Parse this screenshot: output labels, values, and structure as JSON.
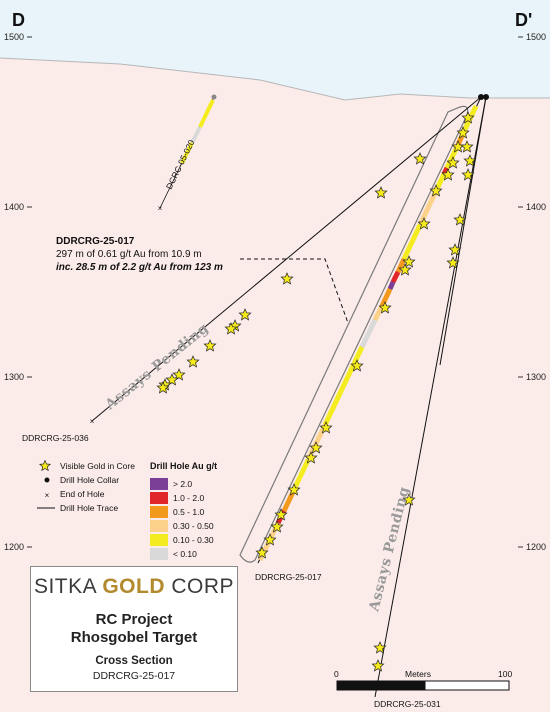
{
  "corners": {
    "left": "D",
    "right": "D'"
  },
  "elevations": [
    "1500",
    "1400",
    "1300",
    "1200"
  ],
  "holes": {
    "main": "DDRCRG-25-017",
    "main_bottom": "DDRCRG-25-017",
    "left_hole": "DDRCRG-25-036",
    "short_hole": "DCRC-05-020",
    "steep_hole": "DDRCRG-25-031"
  },
  "annotation": {
    "title": "DDRCRG-25-017",
    "line1": "297 m of 0.61 g/t Au from 10.9 m",
    "line2": "inc. 28.5 m of 2.2 g/t Au from 123 m"
  },
  "pending": [
    "Assays Pending",
    "Assays Pending"
  ],
  "legend": {
    "symbols": [
      {
        "label": "Visible Gold in Core",
        "icon": "star-icon"
      },
      {
        "label": "Drill Hole Collar",
        "icon": "collar-dot-icon"
      },
      {
        "label": "End of Hole",
        "icon": "cross-icon"
      },
      {
        "label": "Drill Hole Trace",
        "icon": "line-icon"
      }
    ],
    "au_title": "Drill Hole Au g/t",
    "au_classes": [
      {
        "label": "> 2.0",
        "color": "#7b3f98"
      },
      {
        "label": "1.0 - 2.0",
        "color": "#e0262b"
      },
      {
        "label": "0.5 - 1.0",
        "color": "#f39a1e"
      },
      {
        "label": "0.30 - 0.50",
        "color": "#fcd28a"
      },
      {
        "label": "0.10 - 0.30",
        "color": "#f4ec1e"
      },
      {
        "label": "< 0.10",
        "color": "#d9d9d9"
      }
    ]
  },
  "scale_bar": {
    "start": "0",
    "unit": "Meters",
    "end": "100"
  },
  "title_box": {
    "logo_left": "SITKA ",
    "logo_mid": "GOLD",
    "logo_right": " CORP",
    "project": "RC Project",
    "target": "Rhosgobel Target",
    "section_type": "Cross Section",
    "section_hole": "DDRCRG-25-017"
  },
  "colors": {
    "sky": "#e8f4fa",
    "ground": "#fbecea",
    "trace": "#111111"
  }
}
